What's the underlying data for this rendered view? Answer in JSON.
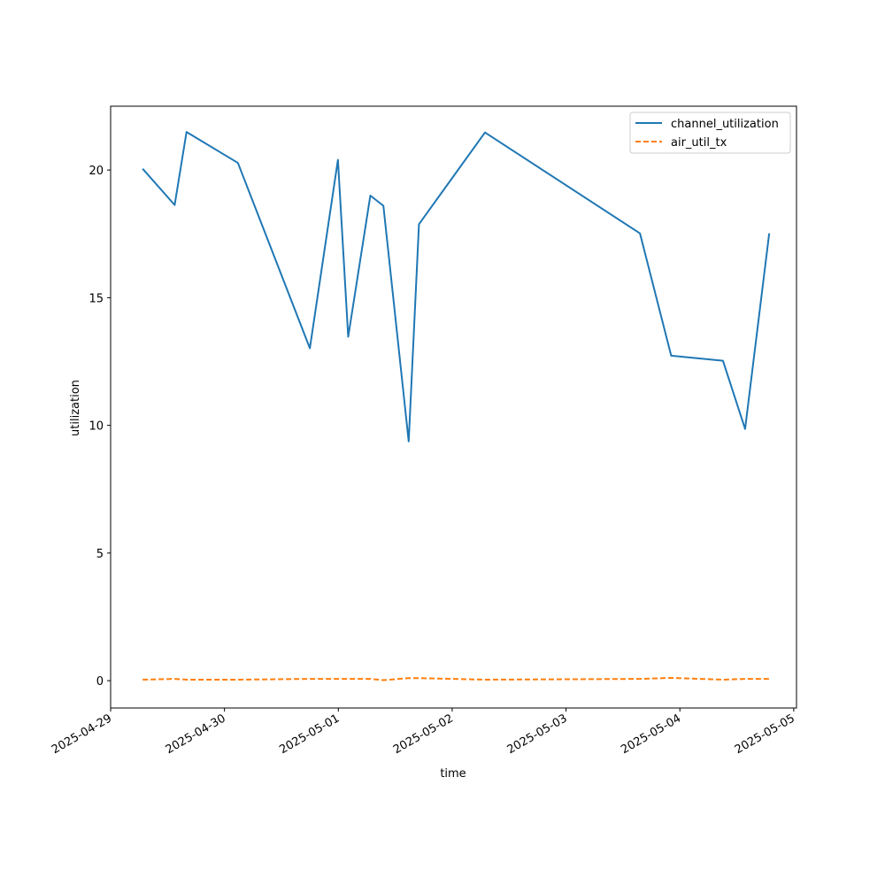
{
  "chart_data": {
    "type": "line",
    "title": "",
    "xlabel": "time",
    "ylabel": "utilization",
    "x_is_date": true,
    "xlim": [
      "2025-04-29T00:00",
      "2025-05-05T00:35"
    ],
    "ylim": [
      -1.07,
      22.5
    ],
    "xticks": [
      "2025-04-29",
      "2025-04-30",
      "2025-05-01",
      "2025-05-02",
      "2025-05-03",
      "2025-05-04",
      "2025-05-05"
    ],
    "yticks": [
      0,
      5,
      10,
      15,
      20
    ],
    "grid": false,
    "legend_placement": "top-right",
    "colors": {
      "channel_utilization": "#1f77b4",
      "air_util_tx": "#ff7f0e"
    },
    "x": [
      "2025-04-29T06:45",
      "2025-04-29T13:30",
      "2025-04-29T16:00",
      "2025-04-30T02:50",
      "2025-04-30T18:00",
      "2025-04-30T23:55",
      "2025-05-01T02:05",
      "2025-05-01T06:45",
      "2025-05-01T09:30",
      "2025-05-01T14:50",
      "2025-05-01T17:00",
      "2025-05-02T06:55",
      "2025-05-03T15:35",
      "2025-05-03T22:10",
      "2025-05-04T09:05",
      "2025-05-04T13:45",
      "2025-05-04T18:50"
    ],
    "series": [
      {
        "name": "channel_utilization",
        "style": "solid",
        "values": [
          20.05,
          18.63,
          21.49,
          20.28,
          13.02,
          20.4,
          13.47,
          19.0,
          18.6,
          9.37,
          17.88,
          21.47,
          17.52,
          12.73,
          12.53,
          9.86,
          17.52
        ]
      },
      {
        "name": "air_util_tx",
        "style": "dashed",
        "values": [
          0.04,
          0.07,
          0.04,
          0.04,
          0.07,
          0.07,
          0.07,
          0.07,
          0.02,
          0.1,
          0.1,
          0.04,
          0.07,
          0.11,
          0.04,
          0.07,
          0.07
        ]
      }
    ]
  }
}
